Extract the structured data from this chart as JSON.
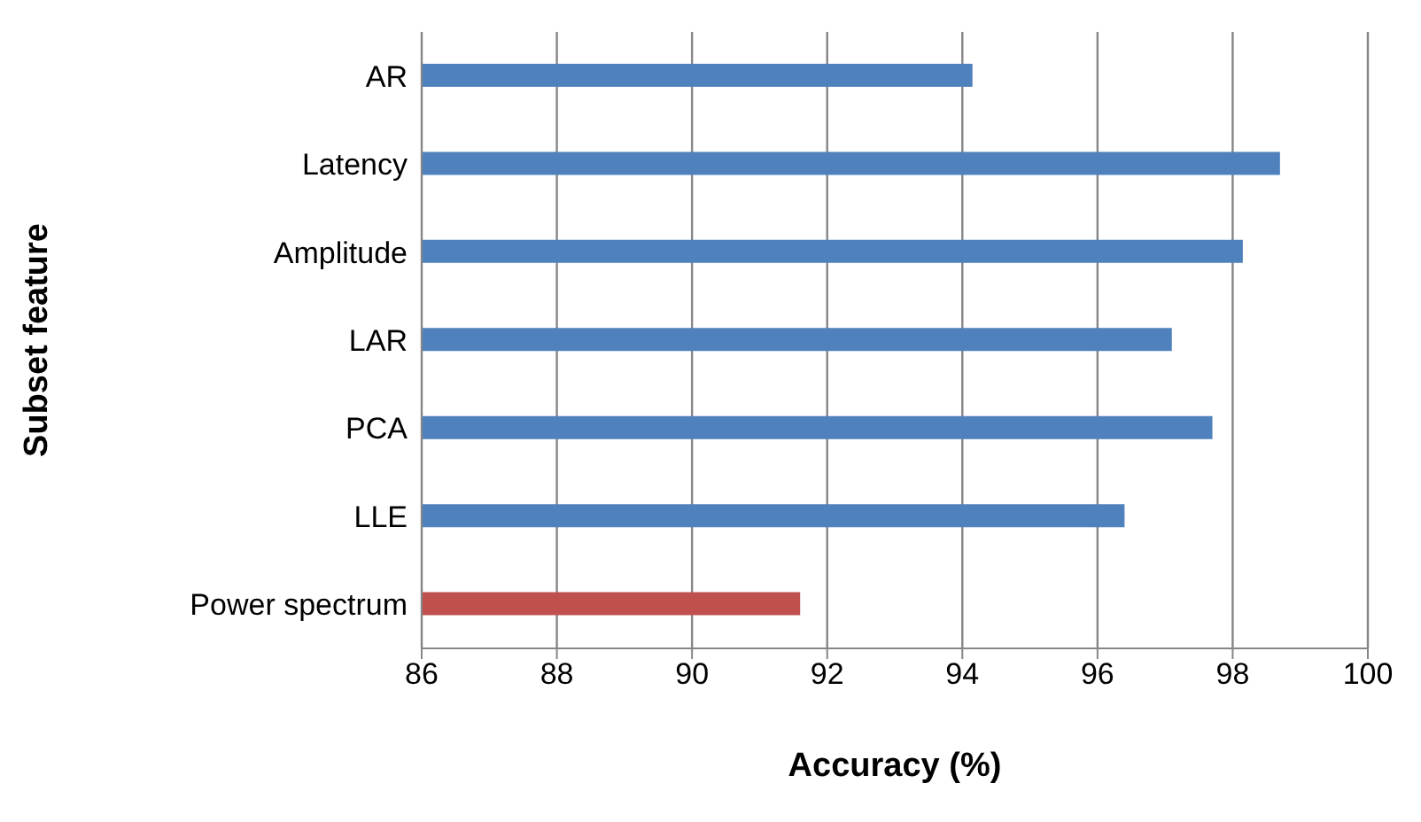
{
  "chart_data": {
    "type": "bar",
    "orientation": "horizontal",
    "xlabel": "Accuracy (%)",
    "ylabel": "Subset feature",
    "categories": [
      "AR",
      "Latency",
      "Amplitude",
      "LAR",
      "PCA",
      "LLE",
      "Power spectrum"
    ],
    "values": [
      94.15,
      98.7,
      98.15,
      97.1,
      97.7,
      96.4,
      91.6
    ],
    "colors": [
      "#4f81bd",
      "#4f81bd",
      "#4f81bd",
      "#4f81bd",
      "#4f81bd",
      "#4f81bd",
      "#c0504d"
    ],
    "xlim": [
      86,
      100
    ],
    "xticks": [
      86,
      88,
      90,
      92,
      94,
      96,
      98,
      100
    ],
    "grid": "x"
  }
}
